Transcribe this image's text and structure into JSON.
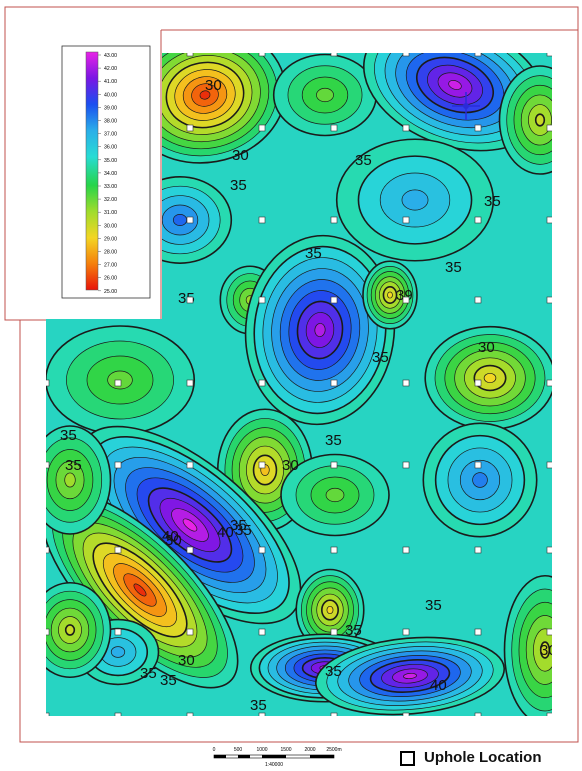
{
  "legend": {
    "labels": [
      "43.00",
      "42.00",
      "41.00",
      "40.00",
      "39.00",
      "38.00",
      "37.00",
      "36.00",
      "35.00",
      "34.00",
      "33.00",
      "32.00",
      "31.00",
      "30.00",
      "29.00",
      "28.00",
      "27.00",
      "26.00",
      "25.00"
    ],
    "color_stops": [
      {
        "value": 25,
        "color": "#e8140a"
      },
      {
        "value": 27,
        "color": "#f57f0c"
      },
      {
        "value": 29,
        "color": "#f3d624"
      },
      {
        "value": 31,
        "color": "#9fdc2c"
      },
      {
        "value": 33,
        "color": "#27d449"
      },
      {
        "value": 35,
        "color": "#27dcd4"
      },
      {
        "value": 37,
        "color": "#2aaee9"
      },
      {
        "value": 39,
        "color": "#1a4ff0"
      },
      {
        "value": 41,
        "color": "#7a16e4"
      },
      {
        "value": 43,
        "color": "#e823e6"
      }
    ]
  },
  "contour_labels": [
    "30",
    "30",
    "35",
    "35",
    "35",
    "35",
    "35",
    "35",
    "39",
    "30",
    "35",
    "35",
    "35",
    "35",
    "30",
    "30",
    "35",
    "35",
    "40",
    "40",
    "35",
    "30",
    "35",
    "35",
    "30",
    "35",
    "40",
    "35",
    "35"
  ],
  "legend_item": {
    "label": "Uphole Location"
  },
  "scale_bar": {
    "ticks": [
      "0",
      "500",
      "1000",
      "1500",
      "2000",
      "2500m"
    ],
    "ratio": "1:40000"
  },
  "boundary_color": "#c0504d",
  "icons": {
    "north_arrow": "north-arrow-icon",
    "uphole_marker": "uphole-marker-icon"
  }
}
